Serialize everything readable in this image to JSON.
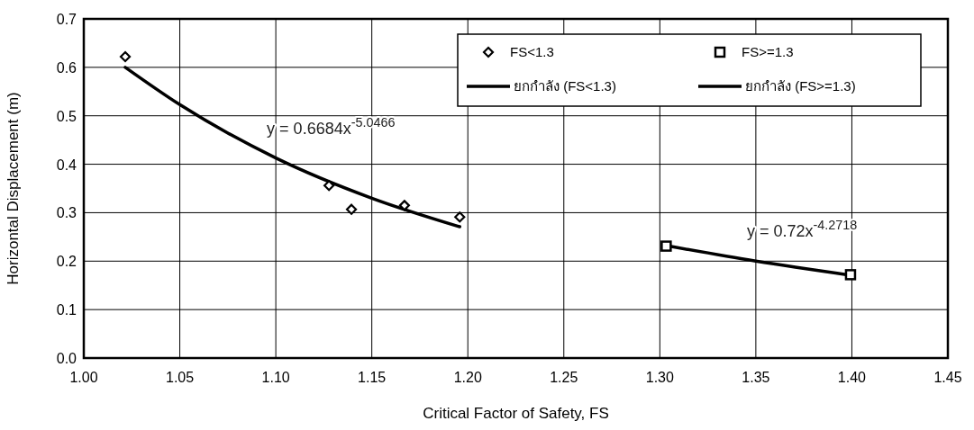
{
  "chart_data": {
    "type": "scatter",
    "xlabel": "Critical Factor of Safety, FS",
    "ylabel": "Horizontal Displacement (m)",
    "xlim": [
      1.0,
      1.45
    ],
    "xticks": [
      {
        "value": 1.0,
        "label": "1.00"
      },
      {
        "value": 1.05,
        "label": "1.05"
      },
      {
        "value": 1.1,
        "label": "1.10"
      },
      {
        "value": 1.15,
        "label": "1.15"
      },
      {
        "value": 1.2,
        "label": "1.20"
      },
      {
        "value": 1.25,
        "label": "1.25"
      },
      {
        "value": 1.3,
        "label": "1.30"
      },
      {
        "value": 1.35,
        "label": "1.35"
      },
      {
        "value": 1.4,
        "label": "1.40"
      },
      {
        "value": 1.45,
        "label": "1.45"
      }
    ],
    "ylim": [
      0,
      0.7
    ],
    "yticks": [
      {
        "value": 0,
        "label": "0.0"
      },
      0.1,
      0.2,
      0.3,
      0.4,
      0.5,
      0.6,
      0.7
    ],
    "grid": true,
    "legend": "top right",
    "series": [
      {
        "name": "FS<1.3",
        "marker": "diamond",
        "color": "#000000",
        "x": [
          1.0216,
          1.1277,
          1.1394,
          1.167,
          1.1958
        ],
        "values": [
          0.622,
          0.356,
          0.307,
          0.315,
          0.291
        ]
      },
      {
        "name": "FS>=1.3",
        "marker": "square",
        "color": "#000000",
        "x": [
          1.3033,
          1.3993
        ],
        "values": [
          0.231,
          0.172
        ]
      },
      {
        "name": "ยกกำลัง (FS<1.3)",
        "type": "line",
        "marker": "none",
        "line_style": "solid",
        "color": "#000000",
        "x": [
          1.0216,
          1.05,
          1.1,
          1.15,
          1.1958
        ],
        "values": [
          0.6,
          0.523,
          0.413,
          0.33,
          0.271
        ]
      },
      {
        "name": "ยกกำลัง (FS>=1.3)",
        "type": "line",
        "marker": "none",
        "line_style": "solid",
        "color": "#000000",
        "x": [
          1.3033,
          1.35,
          1.3993
        ],
        "values": [
          0.232,
          0.2,
          0.171
        ]
      }
    ],
    "annotations": [
      "y = 0.6684x$^{-5.0466}$",
      "y = 0.72x$^{-4.2718}$"
    ]
  }
}
